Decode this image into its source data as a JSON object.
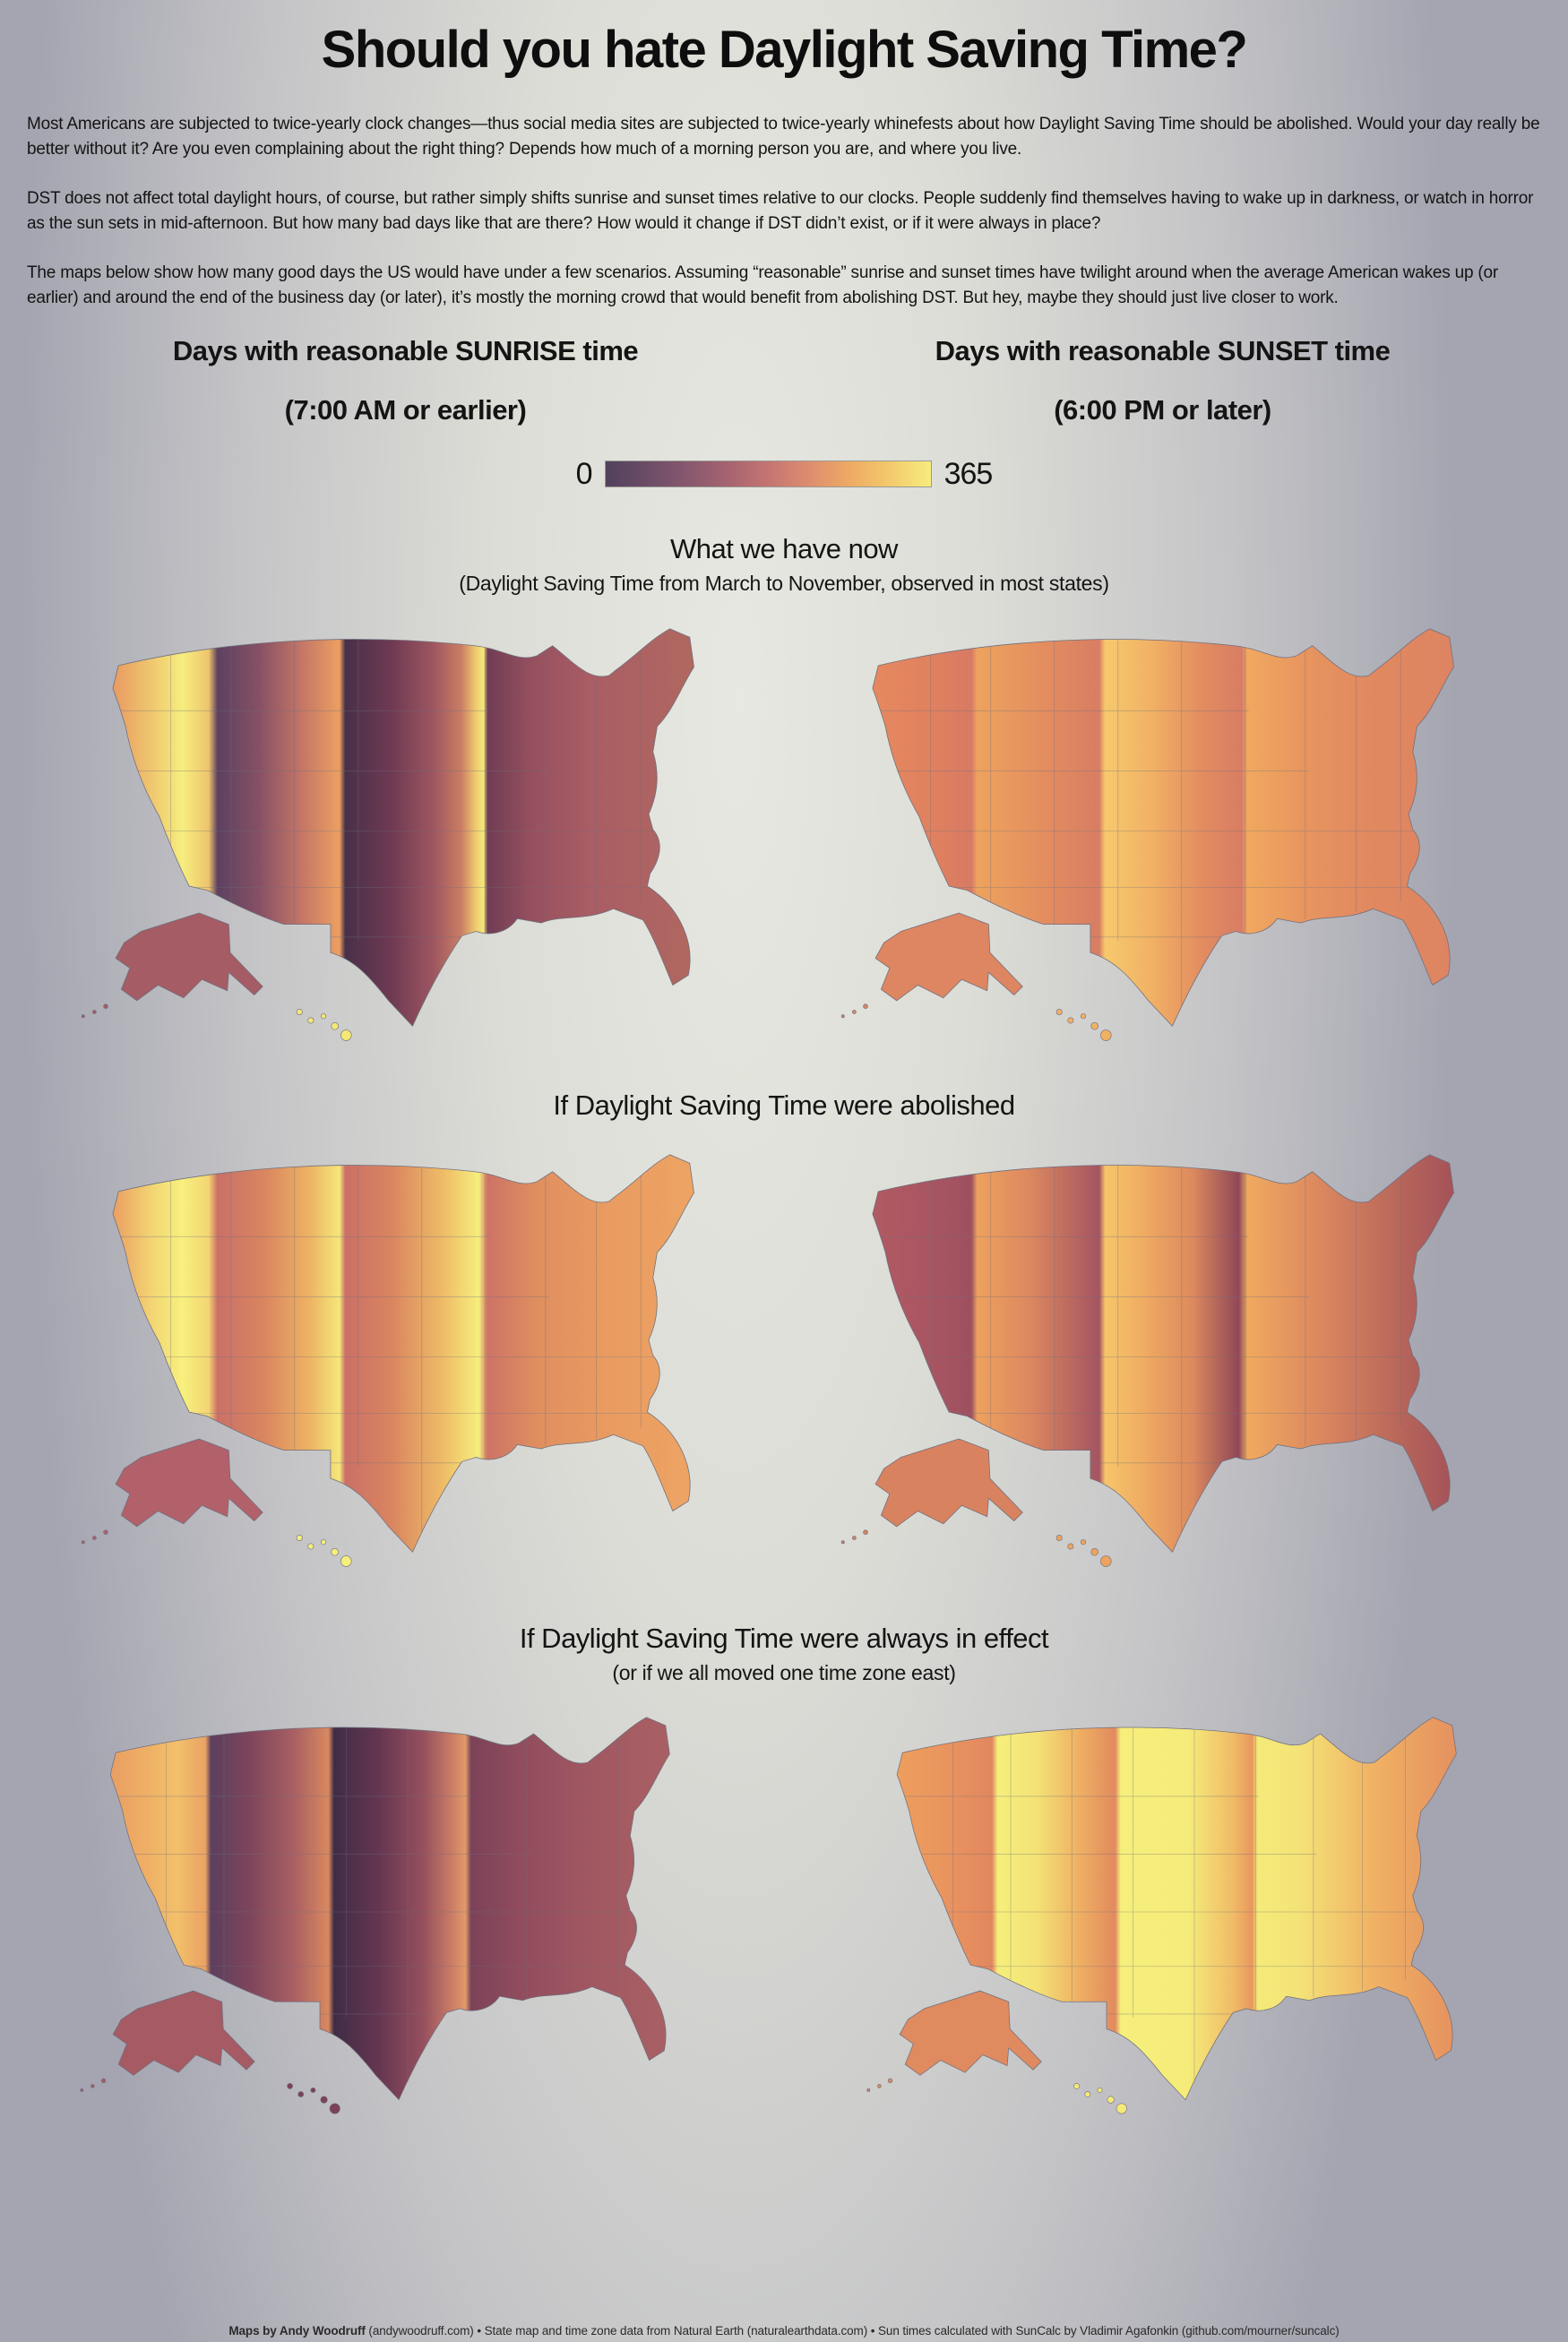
{
  "page": {
    "title": "Should you hate Daylight Saving Time?",
    "paragraphs": [
      "Most Americans are subjected to twice-yearly clock changes—thus social media sites are subjected to twice-yearly whinefests about how Daylight Saving Time should be abolished. Would your day really be better without it? Are you even complaining about the right thing? Depends how much of a morning person you are, and where you live.",
      "DST does not affect total daylight hours, of course, but rather simply shifts sunrise and sunset times relative to our clocks. People suddenly find themselves having to wake up in darkness, or watch in horror as the sun sets in mid-afternoon. But how many bad days like that are there? How would it change if DST didn’t exist, or if it were always in place?",
      "The maps below show how many good days the US would have under a few scenarios. Assuming “reasonable” sunrise and sunset times have twilight around when the average American wakes up (or earlier) and around the end of the business day (or later), it’s mostly the morning crowd that would benefit from abolishing DST. But hey, maybe they should just live closer to work."
    ],
    "footer": {
      "bold": "Maps by Andy Woodruff",
      "rest": " (andywoodruff.com) • State map and time zone data from Natural Earth (naturalearthdata.com) • Sun times calculated with SunCalc by Vladimir Agafonkin (github.com/mourner/suncalc)"
    }
  },
  "columns": {
    "sunrise": {
      "title": "Days with reasonable SUNRISE time",
      "subtitle": "(7:00 AM or earlier)"
    },
    "sunset": {
      "title": "Days with reasonable SUNSET time",
      "subtitle": "(6:00 PM or later)"
    }
  },
  "legend": {
    "min": "0",
    "max": "365",
    "gradient": [
      "#51415c",
      "#6b4c66",
      "#87586e",
      "#a66370",
      "#c47572",
      "#dd8d6e",
      "#edaa64",
      "#f4ca6c",
      "#f7ec7d"
    ]
  },
  "sections": [
    {
      "title": "What we have now",
      "subtitle": "(Daylight Saving Time from March to November, observed in most states)"
    },
    {
      "title": "If Daylight Saving Time were abolished",
      "subtitle": ""
    },
    {
      "title": "If Daylight Saving Time were always in effect",
      "subtitle": "(or if we all moved one time zone east)"
    }
  ],
  "chart_data": {
    "type": "heatmap",
    "note": "Six US choropleth maps; color encodes number of days per year meeting the criterion, shading varies west-to-east within each time zone (hard jumps at time zone boundaries)",
    "color_scale": {
      "domain": [
        0,
        365
      ],
      "low_color": "#51415c",
      "high_color": "#f7ec7d"
    },
    "maps": [
      {
        "scenario": "What we have now",
        "metric": "Days with reasonable sunrise (7:00 AM or earlier)",
        "pattern": "Orange Pacific coast brightening to yellow in eastern California/Nevada; dark purple west edge of Mountain zone; very dark west Texas; yellow band in Tennessee/Alabama; dark maroon Midwest and East",
        "gradient": [
          [
            0,
            "#e89a62"
          ],
          [
            0.07,
            "#f0c96f"
          ],
          [
            0.12,
            "#f6ee7e"
          ],
          [
            0.165,
            "#eec46c"
          ],
          [
            0.18,
            "#5d4160"
          ],
          [
            0.25,
            "#855064"
          ],
          [
            0.32,
            "#c07366"
          ],
          [
            0.39,
            "#ec9f61"
          ],
          [
            0.4,
            "#483049"
          ],
          [
            0.48,
            "#6f3a52"
          ],
          [
            0.55,
            "#9c5560"
          ],
          [
            0.6,
            "#cb7e64"
          ],
          [
            0.625,
            "#f0cc6f"
          ],
          [
            0.638,
            "#f4e97a"
          ],
          [
            0.645,
            "#703d54"
          ],
          [
            0.72,
            "#95505f"
          ],
          [
            0.82,
            "#a95d64"
          ],
          [
            1,
            "#b06860"
          ]
        ],
        "alaska": "#a55c64",
        "hawaii": "#f3e776"
      },
      {
        "scenario": "What we have now",
        "metric": "Days with reasonable sunset (6:00 PM or later)",
        "pattern": "Fairly uniform orange nationwide; slightly lighter on western edges of each zone, yellow-orange in Texas",
        "gradient": [
          [
            0,
            "#e6895f"
          ],
          [
            0.1,
            "#e0815f"
          ],
          [
            0.17,
            "#d87a64"
          ],
          [
            0.18,
            "#eda35e"
          ],
          [
            0.28,
            "#e5905f"
          ],
          [
            0.39,
            "#d87d63"
          ],
          [
            0.4,
            "#f6c96d"
          ],
          [
            0.48,
            "#f1b165"
          ],
          [
            0.57,
            "#e28b60"
          ],
          [
            0.635,
            "#d87d64"
          ],
          [
            0.645,
            "#f0a85f"
          ],
          [
            0.75,
            "#e7945f"
          ],
          [
            0.85,
            "#e18960"
          ],
          [
            1,
            "#dd8462"
          ]
        ],
        "alaska": "#dd8661",
        "hawaii": "#f0b163"
      },
      {
        "scenario": "If Daylight Saving Time were abolished",
        "metric": "Days with reasonable sunrise (7:00 AM or earlier)",
        "pattern": "Brighter overall: bright yellow central California/Nevada, yellow New Mexico/west Texas edge, yellow Tennessee/Alabama; salmon-rose west edges of zones; dark rose Alaska",
        "gradient": [
          [
            0,
            "#ea9e62"
          ],
          [
            0.07,
            "#f3d774"
          ],
          [
            0.12,
            "#f7f07e"
          ],
          [
            0.165,
            "#f3d572"
          ],
          [
            0.18,
            "#ca7067"
          ],
          [
            0.26,
            "#d98560"
          ],
          [
            0.34,
            "#eeb464"
          ],
          [
            0.39,
            "#f4e77a"
          ],
          [
            0.4,
            "#cb7067"
          ],
          [
            0.48,
            "#d98560"
          ],
          [
            0.57,
            "#efbd67"
          ],
          [
            0.63,
            "#f6ee7d"
          ],
          [
            0.645,
            "#cd7366"
          ],
          [
            0.73,
            "#df8f5f"
          ],
          [
            0.85,
            "#e99b61"
          ],
          [
            1,
            "#eda463"
          ]
        ],
        "alaska": "#b2606a",
        "hawaii": "#f6ee7d"
      },
      {
        "scenario": "If Daylight Saving Time were abolished",
        "metric": "Days with reasonable sunset (6:00 PM or later)",
        "pattern": "Dark rose Pacific zone and Maine; dark rose eastern edges of zones (Dakotas, Kentucky/Tennessee/Alabama); yellow-orange west Texas; orange elsewhere",
        "gradient": [
          [
            0,
            "#b05a62"
          ],
          [
            0.09,
            "#aa5662"
          ],
          [
            0.17,
            "#9e505f"
          ],
          [
            0.18,
            "#eda15e"
          ],
          [
            0.27,
            "#dc8860"
          ],
          [
            0.39,
            "#a45461"
          ],
          [
            0.4,
            "#f6c56a"
          ],
          [
            0.46,
            "#f0ae63"
          ],
          [
            0.55,
            "#dd8a5e"
          ],
          [
            0.63,
            "#904857"
          ],
          [
            0.645,
            "#f0a95f"
          ],
          [
            0.78,
            "#d9855f"
          ],
          [
            0.92,
            "#b4635a"
          ],
          [
            1,
            "#a55259"
          ]
        ],
        "alaska": "#d9825f",
        "hawaii": "#eda35f"
      },
      {
        "scenario": "If Daylight Saving Time were always in effect",
        "metric": "Days with reasonable sunrise (7:00 AM or earlier)",
        "pattern": "Darkest overall: dark purple west Mountain zone, near-black southwest Texas, dark maroon across Midwest and East; orange west coast; dark Hawaii",
        "gradient": [
          [
            0,
            "#e99e63"
          ],
          [
            0.07,
            "#efb166"
          ],
          [
            0.12,
            "#f2c06a"
          ],
          [
            0.17,
            "#eaa263"
          ],
          [
            0.18,
            "#5c3f5e"
          ],
          [
            0.25,
            "#7e455b"
          ],
          [
            0.33,
            "#aa6063"
          ],
          [
            0.39,
            "#d8895f"
          ],
          [
            0.4,
            "#402c46"
          ],
          [
            0.48,
            "#653650"
          ],
          [
            0.56,
            "#96505e"
          ],
          [
            0.61,
            "#c97c66"
          ],
          [
            0.635,
            "#e39a68"
          ],
          [
            0.645,
            "#7c4258"
          ],
          [
            0.73,
            "#904c5d"
          ],
          [
            0.85,
            "#a05761"
          ],
          [
            1,
            "#a96064"
          ]
        ],
        "alaska": "#a65a63",
        "hawaii": "#7c4158"
      },
      {
        "scenario": "If Daylight Saving Time were always in effect",
        "metric": "Days with reasonable sunset (6:00 PM or later)",
        "pattern": "Brightest overall: yellow across Idaho/Utah, Texas, central plains and Southeast; orange west coast, Montana/Dakotas, Wisconsin/Illinois, Kentucky/Tennessee/Alabama bands and Maine",
        "gradient": [
          [
            0,
            "#ee9e5e"
          ],
          [
            0.09,
            "#e9945f"
          ],
          [
            0.17,
            "#e2875f"
          ],
          [
            0.18,
            "#f5ef7c"
          ],
          [
            0.25,
            "#f4e276"
          ],
          [
            0.33,
            "#eead62"
          ],
          [
            0.39,
            "#e18a5f"
          ],
          [
            0.4,
            "#f6ef7b"
          ],
          [
            0.52,
            "#f5ec7a"
          ],
          [
            0.6,
            "#f0bc67"
          ],
          [
            0.635,
            "#e8975e"
          ],
          [
            0.645,
            "#f4ea79"
          ],
          [
            0.72,
            "#f4e377"
          ],
          [
            0.85,
            "#f0b264"
          ],
          [
            1,
            "#e5915f"
          ]
        ],
        "alaska": "#e08a5f",
        "hawaii": "#f4ea78"
      }
    ]
  }
}
